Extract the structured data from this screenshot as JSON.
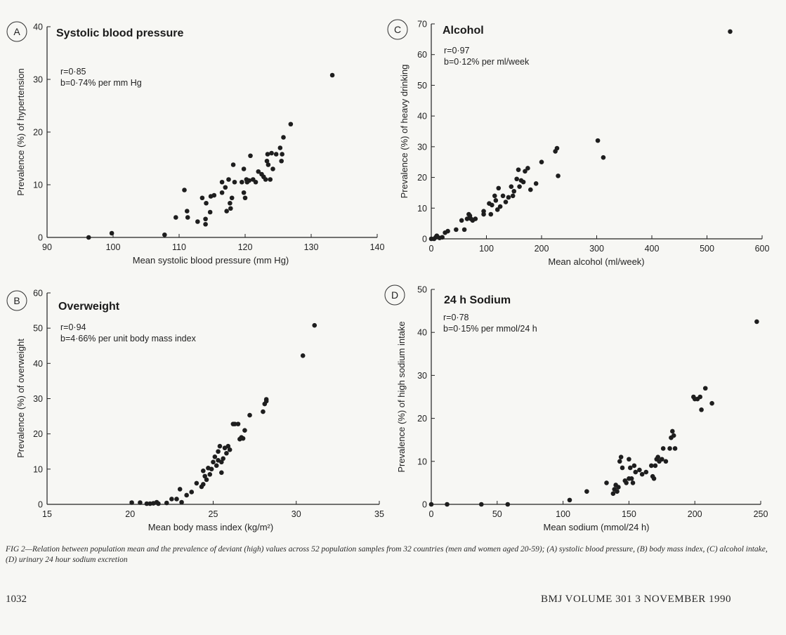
{
  "chart_data": [
    {
      "type": "scatter",
      "panel_label": "A",
      "title": "Systolic blood pressure",
      "stats": [
        "r=0·85",
        "b=0·74% per mm Hg"
      ],
      "xlabel": "Mean systolic blood pressure (mm Hg)",
      "ylabel": "Prevalence (%) of hypertension",
      "xlim": [
        90,
        140
      ],
      "ylim": [
        0,
        40
      ],
      "xticks": [
        90,
        100,
        110,
        120,
        130,
        140
      ],
      "yticks": [
        0,
        10,
        20,
        30,
        40
      ],
      "points": [
        [
          96.3,
          0
        ],
        [
          99.8,
          0.8
        ],
        [
          107.8,
          0.5
        ],
        [
          109.5,
          3.8
        ],
        [
          110.8,
          9.0
        ],
        [
          111.2,
          5.0
        ],
        [
          111.3,
          3.8
        ],
        [
          112.8,
          3.0
        ],
        [
          113.5,
          7.5
        ],
        [
          114.0,
          3.5
        ],
        [
          114.0,
          2.5
        ],
        [
          114.1,
          6.5
        ],
        [
          114.7,
          4.8
        ],
        [
          114.8,
          7.8
        ],
        [
          115.3,
          8.0
        ],
        [
          116.5,
          10.5
        ],
        [
          116.5,
          8.5
        ],
        [
          117.0,
          9.5
        ],
        [
          117.2,
          5.0
        ],
        [
          117.5,
          11.0
        ],
        [
          117.7,
          6.5
        ],
        [
          117.8,
          5.5
        ],
        [
          118.0,
          7.5
        ],
        [
          118.2,
          13.8
        ],
        [
          118.4,
          10.5
        ],
        [
          119.5,
          10.5
        ],
        [
          119.8,
          13.0
        ],
        [
          119.8,
          8.5
        ],
        [
          120.0,
          7.5
        ],
        [
          120.2,
          11.0
        ],
        [
          120.3,
          10.5
        ],
        [
          120.6,
          10.8
        ],
        [
          120.8,
          15.5
        ],
        [
          121.2,
          11.0
        ],
        [
          121.6,
          10.5
        ],
        [
          122.0,
          12.5
        ],
        [
          122.5,
          12.0
        ],
        [
          122.8,
          11.5
        ],
        [
          123.1,
          11.0
        ],
        [
          123.3,
          14.5
        ],
        [
          123.4,
          15.8
        ],
        [
          123.5,
          13.8
        ],
        [
          123.8,
          11.0
        ],
        [
          124.0,
          16.0
        ],
        [
          124.2,
          13.0
        ],
        [
          124.7,
          15.8
        ],
        [
          125.3,
          17.0
        ],
        [
          125.5,
          14.5
        ],
        [
          125.6,
          15.8
        ],
        [
          125.8,
          19.0
        ],
        [
          126.9,
          21.5
        ],
        [
          133.2,
          30.8
        ]
      ]
    },
    {
      "type": "scatter",
      "panel_label": "B",
      "title": "Overweight",
      "stats": [
        "r=0·94",
        "b=4·66% per unit body mass index"
      ],
      "xlabel": "Mean body mass index (kg/m²)",
      "ylabel": "Prevalence (%) of overweight",
      "xlim": [
        15,
        35
      ],
      "ylim": [
        0,
        60
      ],
      "xticks": [
        15,
        20,
        25,
        30,
        35
      ],
      "yticks": [
        0,
        10,
        20,
        30,
        40,
        50,
        60
      ],
      "points": [
        [
          20.1,
          0.5
        ],
        [
          20.6,
          0.5
        ],
        [
          21.0,
          0.2
        ],
        [
          21.2,
          0.2
        ],
        [
          21.4,
          0.3
        ],
        [
          21.6,
          0.6
        ],
        [
          21.7,
          0.2
        ],
        [
          22.2,
          0.4
        ],
        [
          22.5,
          1.5
        ],
        [
          22.8,
          1.5
        ],
        [
          23.0,
          4.3
        ],
        [
          23.1,
          0.6
        ],
        [
          23.4,
          2.6
        ],
        [
          23.7,
          3.5
        ],
        [
          24.0,
          6.0
        ],
        [
          24.3,
          5.0
        ],
        [
          24.4,
          5.7
        ],
        [
          24.4,
          9.5
        ],
        [
          24.5,
          8.0
        ],
        [
          24.6,
          7.0
        ],
        [
          24.7,
          10.3
        ],
        [
          24.8,
          8.5
        ],
        [
          24.9,
          10.0
        ],
        [
          25.0,
          12.0
        ],
        [
          25.1,
          13.5
        ],
        [
          25.2,
          11.0
        ],
        [
          25.3,
          15.0
        ],
        [
          25.3,
          12.5
        ],
        [
          25.4,
          16.5
        ],
        [
          25.5,
          12.0
        ],
        [
          25.5,
          9.0
        ],
        [
          25.6,
          13.0
        ],
        [
          25.7,
          16.0
        ],
        [
          25.8,
          14.5
        ],
        [
          25.9,
          16.5
        ],
        [
          26.0,
          15.5
        ],
        [
          26.2,
          22.8
        ],
        [
          26.3,
          22.8
        ],
        [
          26.5,
          22.8
        ],
        [
          26.6,
          18.5
        ],
        [
          26.7,
          19.0
        ],
        [
          26.8,
          18.7
        ],
        [
          26.9,
          21.0
        ],
        [
          27.2,
          25.3
        ],
        [
          28.0,
          26.3
        ],
        [
          28.1,
          28.5
        ],
        [
          28.2,
          29.3
        ],
        [
          28.2,
          29.8
        ],
        [
          30.4,
          42.2
        ],
        [
          31.1,
          50.8
        ]
      ]
    },
    {
      "type": "scatter",
      "panel_label": "C",
      "title": "Alcohol",
      "stats": [
        "r=0·97",
        "b=0·12% per ml/week"
      ],
      "xlabel": "Mean alcohol (ml/week)",
      "ylabel": "Prevalence (%) of heavy drinking",
      "xlim": [
        0,
        600
      ],
      "ylim": [
        0,
        70
      ],
      "xticks": [
        0,
        100,
        200,
        300,
        400,
        500,
        600
      ],
      "yticks": [
        0,
        10,
        20,
        30,
        40,
        50,
        60,
        70
      ],
      "points": [
        [
          0,
          0
        ],
        [
          5,
          0
        ],
        [
          8,
          0.5
        ],
        [
          10,
          1.0
        ],
        [
          15,
          0.3
        ],
        [
          20,
          0.5
        ],
        [
          25,
          2.0
        ],
        [
          30,
          2.5
        ],
        [
          45,
          3.0
        ],
        [
          55,
          6.0
        ],
        [
          60,
          3.0
        ],
        [
          65,
          6.5
        ],
        [
          68,
          8.0
        ],
        [
          70,
          7.5
        ],
        [
          72,
          6.5
        ],
        [
          75,
          6.0
        ],
        [
          80,
          6.5
        ],
        [
          95,
          8.0
        ],
        [
          95,
          9.0
        ],
        [
          105,
          11.5
        ],
        [
          108,
          8.0
        ],
        [
          110,
          11.0
        ],
        [
          115,
          14.0
        ],
        [
          117,
          12.5
        ],
        [
          120,
          9.5
        ],
        [
          122,
          16.5
        ],
        [
          125,
          10.5
        ],
        [
          130,
          14.0
        ],
        [
          135,
          12.0
        ],
        [
          140,
          13.5
        ],
        [
          145,
          17.0
        ],
        [
          148,
          14.0
        ],
        [
          150,
          15.5
        ],
        [
          155,
          19.5
        ],
        [
          158,
          22.5
        ],
        [
          160,
          17.0
        ],
        [
          163,
          19.0
        ],
        [
          167,
          18.5
        ],
        [
          170,
          22.0
        ],
        [
          175,
          23.0
        ],
        [
          180,
          16.0
        ],
        [
          190,
          18.0
        ],
        [
          200,
          25.0
        ],
        [
          225,
          28.5
        ],
        [
          228,
          29.5
        ],
        [
          230,
          20.5
        ],
        [
          302,
          32.0
        ],
        [
          312,
          26.5
        ],
        [
          542,
          67.5
        ]
      ]
    },
    {
      "type": "scatter",
      "panel_label": "D",
      "title": "24 h Sodium",
      "stats": [
        "r=0·78",
        "b=0·15% per mmol/24 h"
      ],
      "xlabel": "Mean sodium (mmol/24 h)",
      "ylabel": "Prevalence (%) of high sodium intake",
      "xlim": [
        0,
        250
      ],
      "ylim": [
        0,
        50
      ],
      "xticks": [
        0,
        50,
        100,
        150,
        200,
        250
      ],
      "yticks": [
        0,
        10,
        20,
        30,
        40,
        50
      ],
      "points": [
        [
          0,
          0
        ],
        [
          12,
          0
        ],
        [
          38,
          0
        ],
        [
          58,
          0
        ],
        [
          105,
          1.0
        ],
        [
          118,
          3.0
        ],
        [
          133,
          5.0
        ],
        [
          138,
          2.5
        ],
        [
          139,
          3.5
        ],
        [
          140,
          4.5
        ],
        [
          141,
          3.0
        ],
        [
          142,
          4.0
        ],
        [
          143,
          10.0
        ],
        [
          144,
          11.0
        ],
        [
          145,
          8.5
        ],
        [
          147,
          5.5
        ],
        [
          148,
          5.0
        ],
        [
          150,
          6.0
        ],
        [
          150,
          10.5
        ],
        [
          151,
          8.5
        ],
        [
          152,
          6.0
        ],
        [
          153,
          5.0
        ],
        [
          154,
          9.0
        ],
        [
          155,
          7.5
        ],
        [
          158,
          8.0
        ],
        [
          160,
          7.0
        ],
        [
          163,
          7.5
        ],
        [
          167,
          9.0
        ],
        [
          168,
          6.5
        ],
        [
          169,
          6.0
        ],
        [
          170,
          9.0
        ],
        [
          171,
          10.5
        ],
        [
          172,
          11.0
        ],
        [
          173,
          10.0
        ],
        [
          175,
          10.5
        ],
        [
          176,
          13.0
        ],
        [
          178,
          10.0
        ],
        [
          181,
          13.0
        ],
        [
          182,
          15.5
        ],
        [
          183,
          17.0
        ],
        [
          184,
          16.0
        ],
        [
          185,
          13.0
        ],
        [
          199,
          25.0
        ],
        [
          200,
          24.5
        ],
        [
          202,
          24.5
        ],
        [
          204,
          25.0
        ],
        [
          205,
          22.0
        ],
        [
          208,
          27.0
        ],
        [
          213,
          23.5
        ],
        [
          247,
          42.5
        ]
      ]
    }
  ],
  "caption": "FIG 2—Relation between population mean and the prevalence of deviant (high) values across 52 population samples from 32 countries (men and women aged 20-59); (A) systolic blood pressure, (B) body mass index, (C) alcohol intake, (D) urinary 24 hour sodium excretion",
  "footer": {
    "page_number": "1032",
    "journal": "BMJ   VOLUME 301     3 NOVEMBER 1990"
  }
}
